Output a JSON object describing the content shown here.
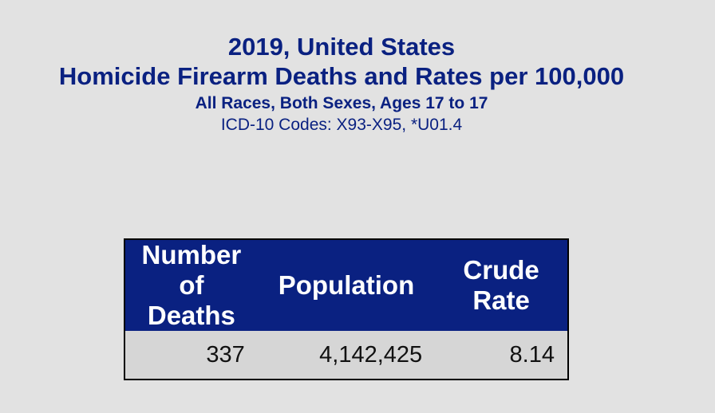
{
  "title": {
    "line1": "2019, United States",
    "line2": "Homicide Firearm Deaths and Rates per 100,000",
    "line3": "All Races, Both Sexes, Ages 17 to 17",
    "line4": "ICD-10 Codes: X93-X95, *U01.4"
  },
  "colors": {
    "background": "#e2e2e2",
    "title_text": "#0a2181",
    "header_background": "#0a2181",
    "header_text": "#ffffff",
    "row_background": "#d6d6d6"
  },
  "chart_data": {
    "type": "table",
    "title": "2019, United States — Homicide Firearm Deaths and Rates per 100,000",
    "columns": [
      {
        "line1": "Number of",
        "line2": "Deaths"
      },
      {
        "line1": "Population",
        "line2": ""
      },
      {
        "line1": "Crude",
        "line2": "Rate"
      }
    ],
    "rows": [
      [
        "337",
        "4,142,425",
        "8.14"
      ]
    ]
  }
}
